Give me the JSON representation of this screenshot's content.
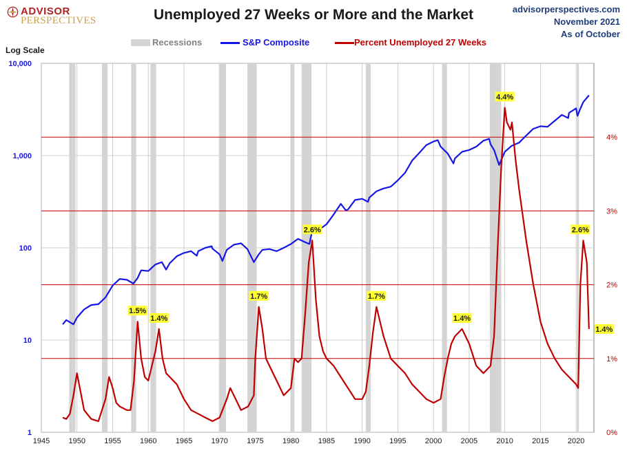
{
  "header": {
    "logo_line1": "ADVISOR",
    "logo_line2": "PERSPECTIVES",
    "title": "Unemployed 27 Weeks or More and the Market",
    "source_site": "advisorperspectives.com",
    "source_date": "November 2021",
    "as_of": "As of October"
  },
  "legend": {
    "recessions": "Recessions",
    "sp": "S&P Composite",
    "unemp": "Percent Unemployed 27 Weeks"
  },
  "colors": {
    "sp": "#1515e6",
    "unemp": "#c00000",
    "recession": "#d4d4d4",
    "grid": "#c0c0c0",
    "ref_line": "#c00000",
    "annotation_bg": "#ffff33"
  },
  "chart_data": {
    "type": "line",
    "title": "Unemployed 27 Weeks or More and the Market",
    "log_scale_label": "Log Scale",
    "x_ticks": [
      "1945",
      "1950",
      "1955",
      "1960",
      "1965",
      "1970",
      "1975",
      "1980",
      "1985",
      "1990",
      "1995",
      "2000",
      "2005",
      "2010",
      "2015",
      "2020"
    ],
    "xlim": [
      1945,
      2022.5
    ],
    "left_axis": {
      "scale": "log",
      "ylim": [
        1,
        10000
      ],
      "ticks": [
        "1",
        "10",
        "100",
        "1,000",
        "10,000"
      ],
      "tick_values": [
        1,
        10,
        100,
        1000,
        10000
      ]
    },
    "right_axis": {
      "ylim": [
        0,
        5
      ],
      "ticks": [
        "0%",
        "1%",
        "2%",
        "3%",
        "4%"
      ],
      "tick_values": [
        0,
        1,
        2,
        3,
        4
      ]
    },
    "recessions": [
      [
        1948.9,
        1949.8
      ],
      [
        1953.5,
        1954.3
      ],
      [
        1957.6,
        1958.3
      ],
      [
        1960.3,
        1961.1
      ],
      [
        1969.9,
        1970.9
      ],
      [
        1973.9,
        1975.2
      ],
      [
        1980.0,
        1980.5
      ],
      [
        1981.5,
        1982.9
      ],
      [
        1990.5,
        1991.2
      ],
      [
        2001.2,
        2001.9
      ],
      [
        2007.9,
        2009.5
      ],
      [
        2020.1,
        2020.4
      ]
    ],
    "series": [
      {
        "name": "S&P Composite",
        "axis": "left",
        "x": [
          1948,
          1948.5,
          1949.5,
          1950,
          1951,
          1952,
          1953,
          1954,
          1955,
          1956,
          1957,
          1957.9,
          1958.5,
          1959,
          1960,
          1961,
          1961.9,
          1962.5,
          1963,
          1964,
          1965,
          1966,
          1966.8,
          1967,
          1968,
          1968.9,
          1969,
          1970,
          1970.4,
          1971,
          1972,
          1973,
          1973.9,
          1974.8,
          1975.5,
          1976,
          1977,
          1978,
          1979,
          1980,
          1981,
          1982,
          1982.6,
          1983,
          1984,
          1985,
          1986,
          1987,
          1987.7,
          1988,
          1989,
          1990,
          1990.8,
          1991,
          1992,
          1993,
          1994,
          1995,
          1996,
          1997,
          1998,
          1999,
          2000,
          2000.6,
          2001,
          2002,
          2002.8,
          2003,
          2004,
          2005,
          2006,
          2007,
          2007.8,
          2008,
          2008.5,
          2009.2,
          2010,
          2011,
          2012,
          2013,
          2014,
          2015,
          2016,
          2017,
          2018,
          2018.9,
          2019,
          2020,
          2020.2,
          2020.5,
          2021,
          2021.8
        ],
        "values": [
          14.8,
          16.5,
          14.8,
          17.5,
          21.5,
          24,
          24.5,
          29,
          39,
          46,
          45,
          41,
          47,
          57,
          56,
          66,
          70,
          58,
          68,
          81,
          88,
          92,
          82,
          92,
          100,
          104,
          98,
          85,
          72,
          95,
          108,
          112,
          97,
          70,
          85,
          95,
          97,
          92,
          100,
          110,
          125,
          115,
          110,
          155,
          158,
          180,
          230,
          300,
          255,
          260,
          330,
          340,
          315,
          350,
          410,
          440,
          460,
          540,
          650,
          880,
          1070,
          1300,
          1420,
          1470,
          1250,
          1050,
          820,
          930,
          1100,
          1150,
          1250,
          1450,
          1520,
          1330,
          1150,
          790,
          1100,
          1280,
          1380,
          1650,
          1950,
          2080,
          2050,
          2380,
          2760,
          2550,
          2900,
          3250,
          2700,
          3100,
          3800,
          4500
        ]
      },
      {
        "name": "Percent Unemployed 27 Weeks",
        "axis": "right",
        "x": [
          1948,
          1948.5,
          1949,
          1949.5,
          1950,
          1950.5,
          1951,
          1952,
          1953,
          1954,
          1954.5,
          1955,
          1955.5,
          1956,
          1957,
          1957.5,
          1958,
          1958.5,
          1959,
          1959.5,
          1960,
          1961,
          1961.5,
          1962,
          1962.5,
          1963,
          1964,
          1965,
          1966,
          1967,
          1968,
          1969,
          1970,
          1971,
          1971.5,
          1972,
          1973,
          1974,
          1974.8,
          1975,
          1975.5,
          1976,
          1976.5,
          1977,
          1978,
          1979,
          1980,
          1980.5,
          1981,
          1981.5,
          1982,
          1982.5,
          1983,
          1983.5,
          1984,
          1984.5,
          1985,
          1986,
          1987,
          1988,
          1989,
          1990,
          1990.5,
          1991,
          1991.5,
          1992,
          1992.5,
          1993,
          1994,
          1995,
          1996,
          1997,
          1998,
          1999,
          2000,
          2001,
          2001.5,
          2002,
          2002.5,
          2003,
          2004,
          2005,
          2006,
          2007,
          2008,
          2008.5,
          2009,
          2009.5,
          2010,
          2010.3,
          2010.8,
          2011,
          2011.5,
          2012,
          2013,
          2014,
          2015,
          2016,
          2017,
          2018,
          2019,
          2019.5,
          2020,
          2020.3,
          2020.6,
          2021,
          2021.5,
          2021.8
        ],
        "values": [
          0.2,
          0.18,
          0.25,
          0.5,
          0.8,
          0.55,
          0.3,
          0.18,
          0.15,
          0.45,
          0.75,
          0.6,
          0.4,
          0.35,
          0.3,
          0.3,
          0.7,
          1.5,
          1.0,
          0.75,
          0.7,
          1.1,
          1.4,
          1.0,
          0.8,
          0.75,
          0.65,
          0.45,
          0.3,
          0.25,
          0.2,
          0.15,
          0.2,
          0.45,
          0.6,
          0.5,
          0.3,
          0.35,
          0.5,
          1.0,
          1.7,
          1.4,
          1.0,
          0.9,
          0.7,
          0.5,
          0.6,
          1.0,
          0.95,
          1.0,
          1.6,
          2.3,
          2.6,
          1.8,
          1.3,
          1.1,
          1.0,
          0.9,
          0.75,
          0.6,
          0.45,
          0.45,
          0.55,
          0.9,
          1.35,
          1.7,
          1.5,
          1.3,
          1.0,
          0.9,
          0.8,
          0.65,
          0.55,
          0.45,
          0.4,
          0.45,
          0.75,
          1.0,
          1.2,
          1.3,
          1.4,
          1.2,
          0.9,
          0.8,
          0.9,
          1.3,
          2.5,
          3.6,
          4.4,
          4.2,
          4.1,
          4.2,
          3.7,
          3.3,
          2.6,
          2.0,
          1.5,
          1.2,
          1.0,
          0.85,
          0.75,
          0.7,
          0.65,
          0.6,
          2.0,
          2.6,
          2.3,
          1.4
        ]
      }
    ],
    "annotations": [
      {
        "label": "1.5%",
        "x": 1958.5,
        "value": 1.5
      },
      {
        "label": "1.4%",
        "x": 1961.5,
        "value": 1.4
      },
      {
        "label": "1.7%",
        "x": 1975.5,
        "value": 1.7
      },
      {
        "label": "2.6%",
        "x": 1983.0,
        "value": 2.6
      },
      {
        "label": "1.7%",
        "x": 1992.0,
        "value": 1.7
      },
      {
        "label": "1.4%",
        "x": 2004.0,
        "value": 1.4
      },
      {
        "label": "4.4%",
        "x": 2010.0,
        "value": 4.4
      },
      {
        "label": "2.6%",
        "x": 2020.6,
        "value": 2.6
      },
      {
        "label": "1.4%",
        "x": 2021.8,
        "value": 1.4
      }
    ]
  }
}
